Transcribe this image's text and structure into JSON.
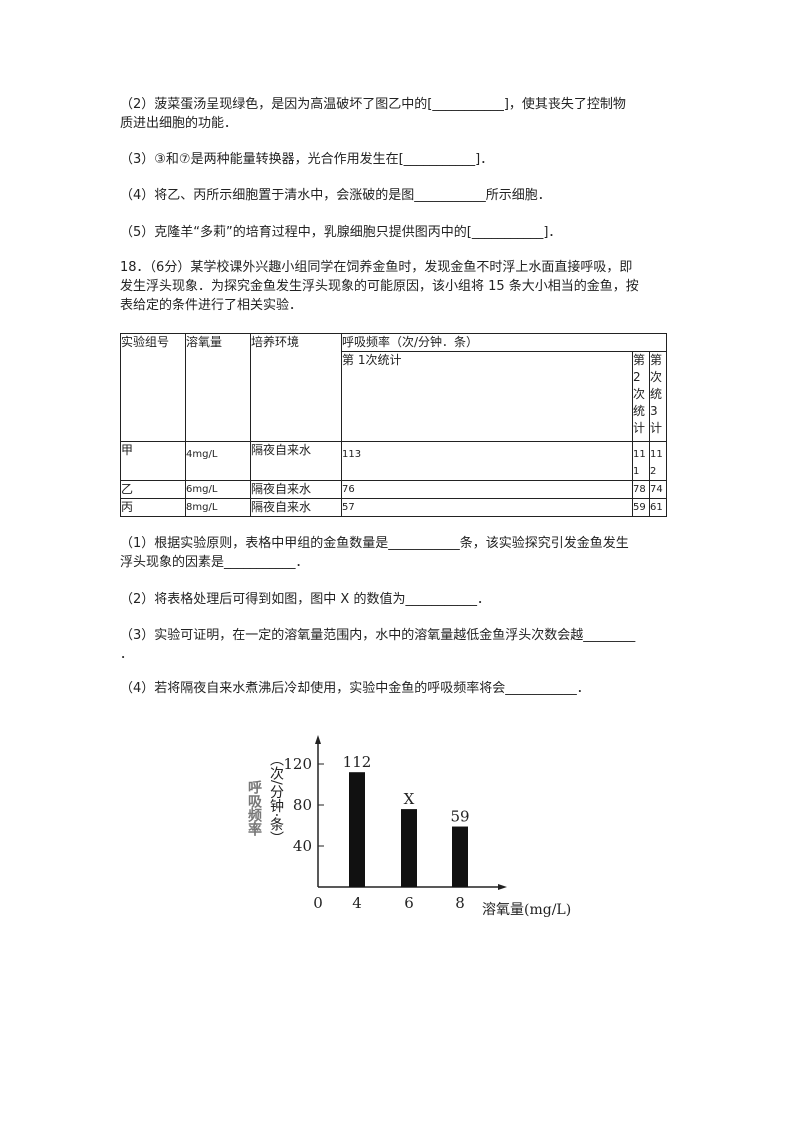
{
  "lines": {
    "q2a": "（2）菠菜蛋汤呈现绿色，是因为高温破坏了图乙中的[___________]，使其丧失了控制物",
    "q2b": "质进出细胞的功能．",
    "q3": "（3）③和⑦是两种能量转换器，光合作用发生在[___________]．",
    "q4": "（4）将乙、丙所示细胞置于清水中，会涨破的是图___________所示细胞．",
    "q5": "（5）克隆羊“多莉”的培育过程中，乳腺细胞只提供图丙中的[___________]．",
    "p18a": "18．（6分）某学校课外兴趣小组同学在饲养金鱼时，发现金鱼不时浮上水面直接呼吸，即",
    "p18b": "发生浮头现象．为探究金鱼发生浮头现象的可能原因，该小组将 15 条大小相当的金鱼，按",
    "p18c": "表给定的条件进行了相关实验．",
    "s1a": "（1）根据实验原则，表格中甲组的金鱼数量是___________条，该实验探究引发金鱼发生",
    "s1b": "浮头现象的因素是___________．",
    "s2": "（2）将表格处理后可得到如图，图中 X 的数值为___________．",
    "s3a": "（3）实验可证明，在一定的溶氧量范围内，水中的溶氧量越低金鱼浮头次数会越________",
    "s3b": "．",
    "s4": "（4）若将隔夜自来水煮沸后冷却使用，实验中金鱼的呼吸频率将会___________．"
  },
  "table": {
    "headers": [
      "实验组号",
      "溶氧量",
      "培养环境",
      "呼吸频率（次/分钟．条）"
    ],
    "sub_headers": [
      "第 1次统计",
      "第2次统计",
      "第次统3计"
    ],
    "rows": [
      {
        "group": "甲",
        "oxygen": "4mg/L",
        "env": "隔夜自来水",
        "c1": "113",
        "c2": "111",
        "c3": "112"
      },
      {
        "group": "乙",
        "oxygen": "6mg/L",
        "env": "隔夜自来水",
        "c1": "76",
        "c2": "78",
        "c3": "74"
      },
      {
        "group": "丙",
        "oxygen": "8mg/L",
        "env": "隔夜自来水",
        "c1": "57",
        "c2": "59",
        "c3": "61"
      }
    ]
  },
  "chart_data": {
    "type": "bar",
    "categories": [
      "4",
      "6",
      "8"
    ],
    "values": [
      112,
      76,
      59
    ],
    "data_labels": [
      "112",
      "X",
      "59"
    ],
    "ylabel_main": "呼吸频率",
    "ylabel_unit": "（次/分钟·条）",
    "xlabel": "溶氧量(mg/L)",
    "origin_label": "0",
    "yticks": [
      40,
      80,
      120
    ],
    "ylim": [
      0,
      140
    ],
    "bar_color": "#111111"
  }
}
